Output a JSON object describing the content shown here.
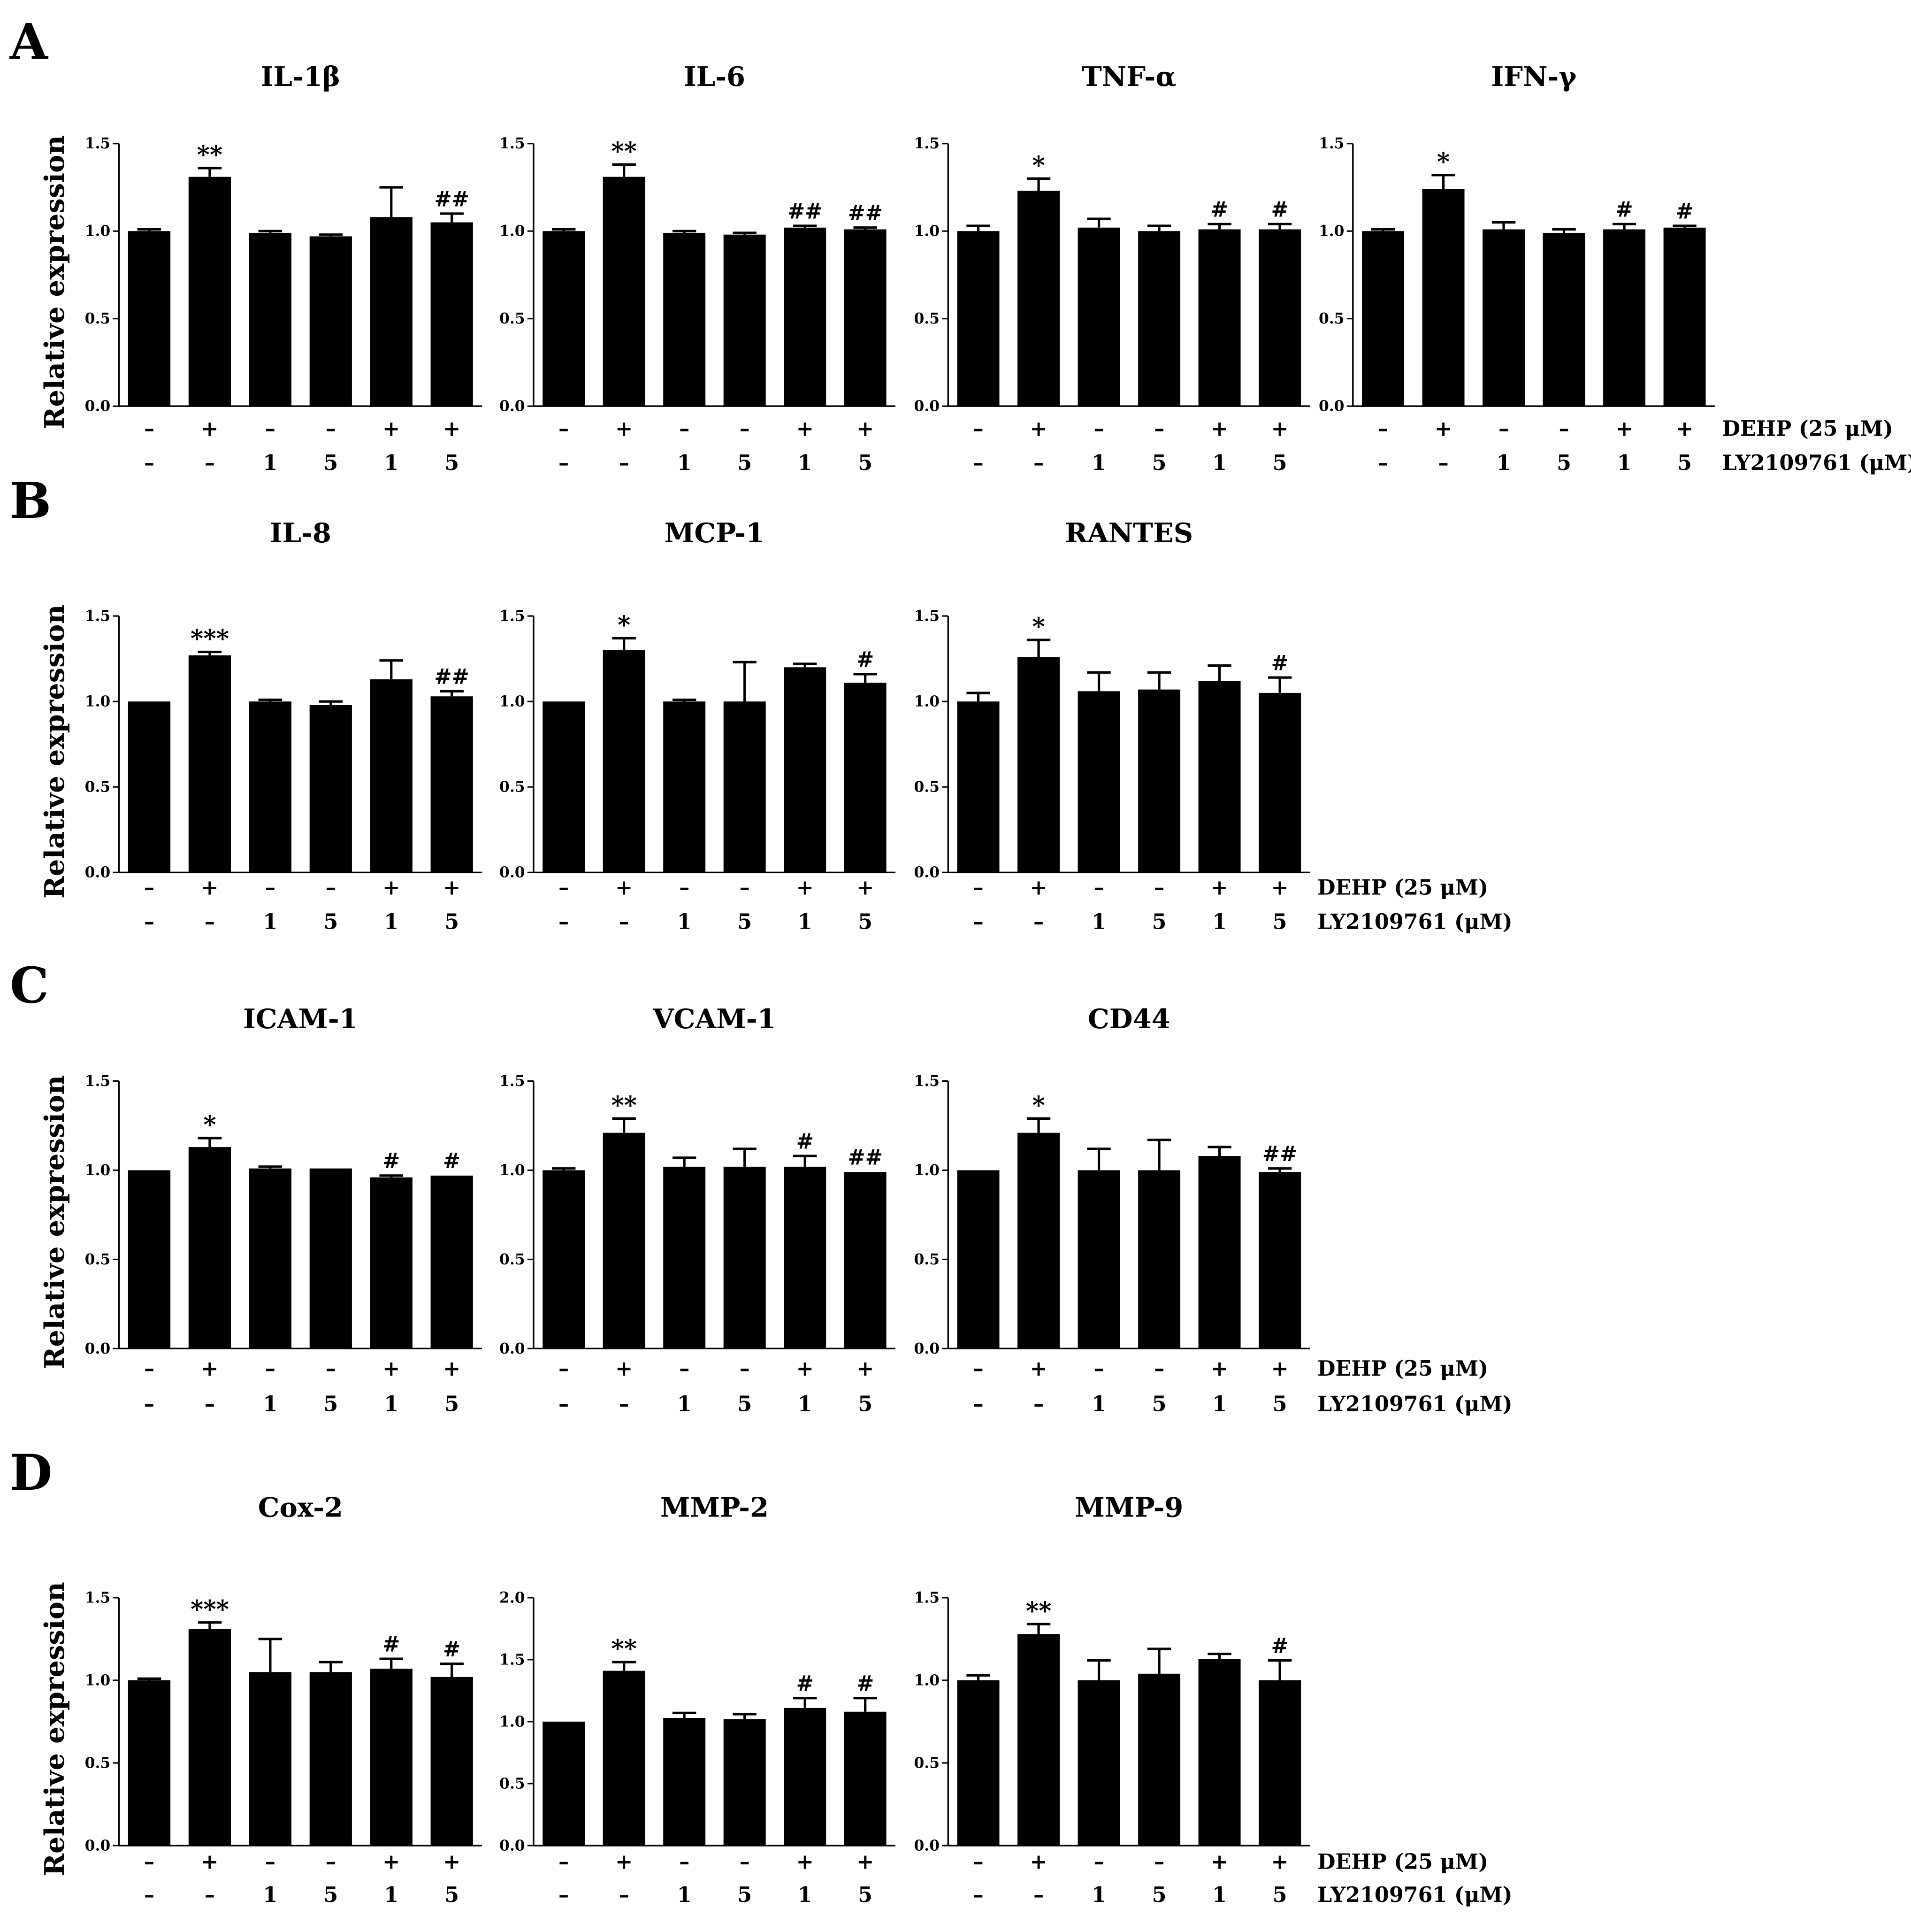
{
  "figure": {
    "row_labels": [
      "DEHP (25 μM)",
      "LY2109761 (μM)"
    ],
    "dehp": [
      "–",
      "+",
      "–",
      "–",
      "+",
      "+"
    ],
    "ly": [
      "–",
      "–",
      "1",
      "5",
      "1",
      "5"
    ]
  },
  "panels": [
    {
      "letter": "A",
      "charts": [
        0,
        1,
        2,
        3
      ]
    },
    {
      "letter": "B",
      "charts": [
        4,
        5,
        6
      ]
    },
    {
      "letter": "C",
      "charts": [
        7,
        8,
        9
      ]
    },
    {
      "letter": "D",
      "charts": [
        10,
        11,
        12
      ]
    }
  ],
  "chart_data": [
    {
      "type": "bar",
      "title": "IL-1β",
      "ylabel": "Relative expression",
      "ylim": [
        0,
        1.5
      ],
      "yticks": [
        "0.0",
        "0.5",
        "1.0",
        "1.5"
      ],
      "values": [
        1.0,
        1.31,
        0.99,
        0.97,
        1.08,
        1.05
      ],
      "errors": [
        0.01,
        0.05,
        0.01,
        0.01,
        0.17,
        0.05
      ],
      "annotations": [
        "",
        "**",
        "",
        "",
        "",
        "##"
      ]
    },
    {
      "type": "bar",
      "title": "IL-6",
      "ylabel": "",
      "ylim": [
        0,
        1.5
      ],
      "yticks": [
        "0.0",
        "0.5",
        "1.0",
        "1.5"
      ],
      "values": [
        1.0,
        1.31,
        0.99,
        0.98,
        1.02,
        1.01
      ],
      "errors": [
        0.01,
        0.07,
        0.01,
        0.01,
        0.01,
        0.01
      ],
      "annotations": [
        "",
        "**",
        "",
        "",
        "##",
        "##"
      ]
    },
    {
      "type": "bar",
      "title": "TNF-α",
      "ylabel": "",
      "ylim": [
        0,
        1.5
      ],
      "yticks": [
        "0.0",
        "0.5",
        "1.0",
        "1.5"
      ],
      "values": [
        1.0,
        1.23,
        1.02,
        1.0,
        1.01,
        1.01
      ],
      "errors": [
        0.03,
        0.07,
        0.05,
        0.03,
        0.03,
        0.03
      ],
      "annotations": [
        "",
        "*",
        "",
        "",
        "#",
        "#"
      ]
    },
    {
      "type": "bar",
      "title": "IFN-γ",
      "ylabel": "",
      "ylim": [
        0,
        1.5
      ],
      "yticks": [
        "0.0",
        "0.5",
        "1.0",
        "1.5"
      ],
      "values": [
        1.0,
        1.24,
        1.01,
        0.99,
        1.01,
        1.02
      ],
      "errors": [
        0.01,
        0.08,
        0.04,
        0.02,
        0.03,
        0.01
      ],
      "annotations": [
        "",
        "*",
        "",
        "",
        "#",
        "#"
      ]
    },
    {
      "type": "bar",
      "title": "IL-8",
      "ylabel": "Relative expression",
      "ylim": [
        0,
        1.5
      ],
      "yticks": [
        "0.0",
        "0.5",
        "1.0",
        "1.5"
      ],
      "values": [
        1.0,
        1.27,
        1.0,
        0.98,
        1.13,
        1.03
      ],
      "errors": [
        0.0,
        0.02,
        0.01,
        0.02,
        0.11,
        0.03
      ],
      "annotations": [
        "",
        "***",
        "",
        "",
        "",
        "##"
      ]
    },
    {
      "type": "bar",
      "title": "MCP-1",
      "ylabel": "",
      "ylim": [
        0,
        1.5
      ],
      "yticks": [
        "0.0",
        "0.5",
        "1.0",
        "1.5"
      ],
      "values": [
        1.0,
        1.3,
        1.0,
        1.0,
        1.2,
        1.11
      ],
      "errors": [
        0.0,
        0.07,
        0.01,
        0.23,
        0.02,
        0.05
      ],
      "annotations": [
        "",
        "*",
        "",
        "",
        "",
        "#"
      ]
    },
    {
      "type": "bar",
      "title": "RANTES",
      "ylabel": "",
      "ylim": [
        0,
        1.5
      ],
      "yticks": [
        "0.0",
        "0.5",
        "1.0",
        "1.5"
      ],
      "values": [
        1.0,
        1.26,
        1.06,
        1.07,
        1.12,
        1.05
      ],
      "errors": [
        0.05,
        0.1,
        0.11,
        0.1,
        0.09,
        0.09
      ],
      "annotations": [
        "",
        "*",
        "",
        "",
        "",
        "#"
      ]
    },
    {
      "type": "bar",
      "title": "ICAM-1",
      "ylabel": "Relative expression",
      "ylim": [
        0,
        1.5
      ],
      "yticks": [
        "0.0",
        "0.5",
        "1.0",
        "1.5"
      ],
      "values": [
        1.0,
        1.13,
        1.01,
        1.01,
        0.96,
        0.97
      ],
      "errors": [
        0.0,
        0.05,
        0.01,
        0.0,
        0.01,
        0.0
      ],
      "annotations": [
        "",
        "*",
        "",
        "",
        "#",
        "#"
      ]
    },
    {
      "type": "bar",
      "title": "VCAM-1",
      "ylabel": "",
      "ylim": [
        0,
        1.5
      ],
      "yticks": [
        "0.0",
        "0.5",
        "1.0",
        "1.5"
      ],
      "values": [
        1.0,
        1.21,
        1.02,
        1.02,
        1.02,
        0.99
      ],
      "errors": [
        0.01,
        0.08,
        0.05,
        0.1,
        0.06,
        0.0
      ],
      "annotations": [
        "",
        "**",
        "",
        "",
        "#",
        "##"
      ]
    },
    {
      "type": "bar",
      "title": "CD44",
      "ylabel": "",
      "ylim": [
        0,
        1.5
      ],
      "yticks": [
        "0.0",
        "0.5",
        "1.0",
        "1.5"
      ],
      "values": [
        1.0,
        1.21,
        1.0,
        1.0,
        1.08,
        0.99
      ],
      "errors": [
        0.0,
        0.08,
        0.12,
        0.17,
        0.05,
        0.02
      ],
      "annotations": [
        "",
        "*",
        "",
        "",
        "",
        "##"
      ]
    },
    {
      "type": "bar",
      "title": "Cox-2",
      "ylabel": "Relative expression",
      "ylim": [
        0,
        1.5
      ],
      "yticks": [
        "0.0",
        "0.5",
        "1.0",
        "1.5"
      ],
      "values": [
        1.0,
        1.31,
        1.05,
        1.05,
        1.07,
        1.02
      ],
      "errors": [
        0.01,
        0.04,
        0.2,
        0.06,
        0.06,
        0.08
      ],
      "annotations": [
        "",
        "***",
        "",
        "",
        "#",
        "#"
      ]
    },
    {
      "type": "bar",
      "title": "MMP-2",
      "ylabel": "",
      "ylim": [
        0,
        2.0
      ],
      "yticks": [
        "0.0",
        "0.5",
        "1.0",
        "1.5",
        "2.0"
      ],
      "values": [
        1.0,
        1.41,
        1.03,
        1.02,
        1.11,
        1.08
      ],
      "errors": [
        0.0,
        0.07,
        0.04,
        0.04,
        0.08,
        0.11
      ],
      "annotations": [
        "",
        "**",
        "",
        "",
        "#",
        "#"
      ]
    },
    {
      "type": "bar",
      "title": "MMP-9",
      "ylabel": "",
      "ylim": [
        0,
        1.5
      ],
      "yticks": [
        "0.0",
        "0.5",
        "1.0",
        "1.5"
      ],
      "values": [
        1.0,
        1.28,
        1.0,
        1.04,
        1.13,
        1.0
      ],
      "errors": [
        0.03,
        0.06,
        0.12,
        0.15,
        0.03,
        0.12
      ],
      "annotations": [
        "",
        "**",
        "",
        "",
        "",
        "#"
      ]
    }
  ]
}
